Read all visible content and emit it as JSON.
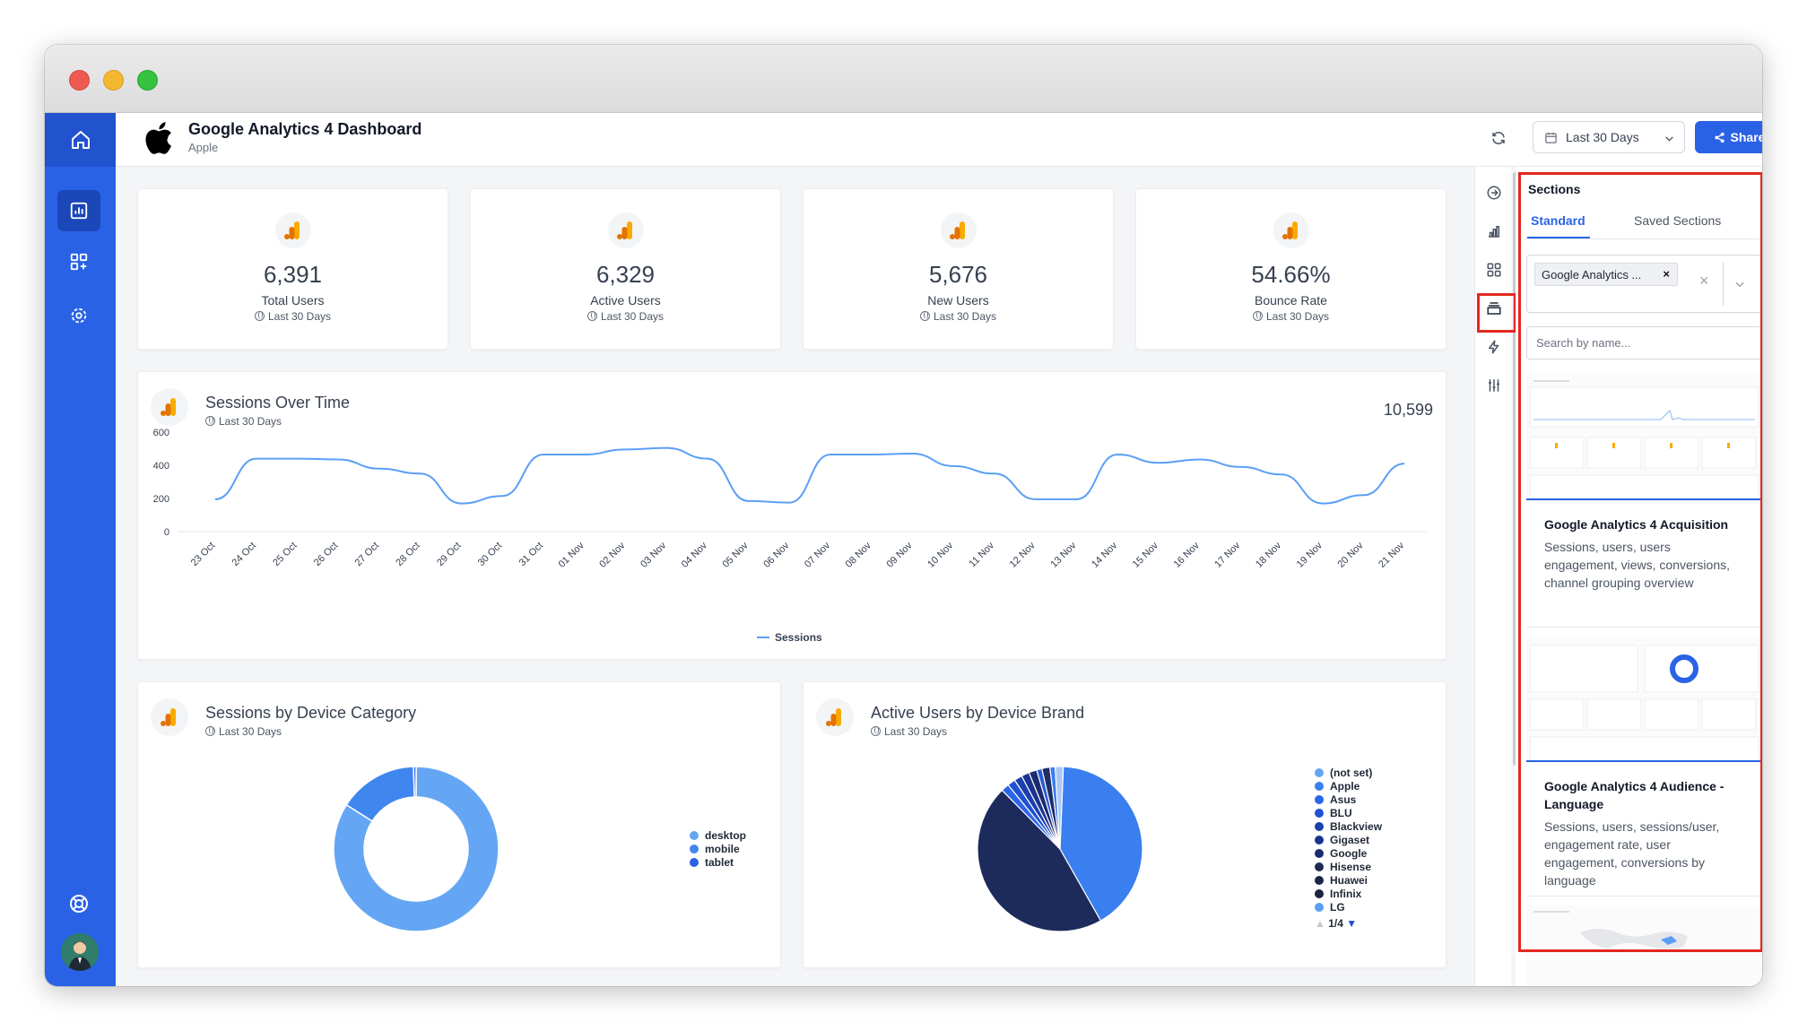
{
  "header": {
    "title": "Google Analytics 4 Dashboard",
    "subtitle": "Apple",
    "date_range": "Last 30 Days",
    "share_label": "Share"
  },
  "kpis": [
    {
      "value": "6,391",
      "label": "Total Users",
      "period": "Last 30 Days"
    },
    {
      "value": "6,329",
      "label": "Active Users",
      "period": "Last 30 Days"
    },
    {
      "value": "5,676",
      "label": "New Users",
      "period": "Last 30 Days"
    },
    {
      "value": "54.66%",
      "label": "Bounce Rate",
      "period": "Last 30 Days"
    }
  ],
  "sessions_card": {
    "title": "Sessions Over Time",
    "period": "Last 30 Days",
    "total": "10,599"
  },
  "device_card": {
    "title": "Sessions by Device Category",
    "period": "Last 30 Days"
  },
  "brand_card": {
    "title": "Active Users by Device Brand",
    "period": "Last 30 Days",
    "pager": "1/4"
  },
  "chart_data": [
    {
      "type": "line",
      "x": [
        "23 Oct",
        "24 Oct",
        "25 Oct",
        "26 Oct",
        "27 Oct",
        "28 Oct",
        "29 Oct",
        "30 Oct",
        "31 Oct",
        "01 Nov",
        "02 Nov",
        "03 Nov",
        "04 Nov",
        "05 Nov",
        "06 Nov",
        "07 Nov",
        "08 Nov",
        "09 Nov",
        "10 Nov",
        "11 Nov",
        "12 Nov",
        "13 Nov",
        "14 Nov",
        "15 Nov",
        "16 Nov",
        "17 Nov",
        "18 Nov",
        "19 Nov",
        "20 Nov",
        "21 Nov"
      ],
      "series": [
        {
          "name": "Sessions",
          "values": [
            195,
            440,
            440,
            435,
            380,
            350,
            170,
            215,
            465,
            465,
            495,
            505,
            440,
            185,
            175,
            465,
            465,
            470,
            395,
            350,
            195,
            195,
            465,
            415,
            435,
            390,
            345,
            170,
            220,
            410
          ]
        }
      ],
      "ylim": [
        0,
        600
      ],
      "yticks": [
        0,
        200,
        400,
        600
      ],
      "grid": false,
      "legend": "bottom",
      "color": "#5a9ff5"
    },
    {
      "type": "pie",
      "style": "donut",
      "labels": [
        "desktop",
        "mobile",
        "tablet"
      ],
      "values": [
        84,
        15.5,
        0.5
      ],
      "colors": [
        "#64a6f3",
        "#3f87ee",
        "#2a62e6"
      ],
      "legend": "right"
    },
    {
      "type": "pie",
      "labels": [
        "Apple",
        "(not set)",
        "Asus",
        "BLU",
        "Blackview",
        "Gigaset",
        "Google",
        "Hisense",
        "Huawei",
        "Infinix",
        "LG"
      ],
      "values": [
        39.5,
        44,
        1.5,
        1.5,
        1.5,
        1.5,
        1.5,
        1,
        1.5,
        1,
        1.5
      ],
      "legend_labels": [
        "(not set)",
        "Apple",
        "Asus",
        "BLU",
        "Blackview",
        "Gigaset",
        "Google",
        "Hisense",
        "Huawei",
        "Infinix",
        "LG"
      ],
      "legend_colors": [
        "#64a6f3",
        "#3a7ff0",
        "#2b66e8",
        "#2150d4",
        "#1c3fae",
        "#1b3390",
        "#1c2a6e",
        "#1d2a55",
        "#1c2548",
        "#1b2140",
        "#5aa0f2"
      ],
      "legend": "right"
    }
  ],
  "sections_panel": {
    "title": "Sections",
    "tab_standard": "Standard",
    "tab_saved": "Saved Sections",
    "filter_chip": "Google Analytics ...",
    "filter_chip_close": "×",
    "filter_clear": "×",
    "search_placeholder": "Search by name...",
    "cards": [
      {
        "title": "Google Analytics 4 Acquisition",
        "description": "Sessions, users, users engagement, views, conversions, channel grouping overview"
      },
      {
        "title": "Google Analytics 4 Audience - Language",
        "description": "Sessions, users, sessions/user, engagement rate, user engagement, conversions by language"
      }
    ]
  },
  "icons": {
    "nav": [
      "home-icon",
      "dashboard-icon",
      "widgets-add-icon",
      "settings-icon",
      "support-icon"
    ],
    "rail": [
      "arrow-right-circle-icon",
      "bar-chart-icon",
      "grid-icon",
      "sections-icon",
      "lightning-icon",
      "sliders-icon"
    ]
  }
}
